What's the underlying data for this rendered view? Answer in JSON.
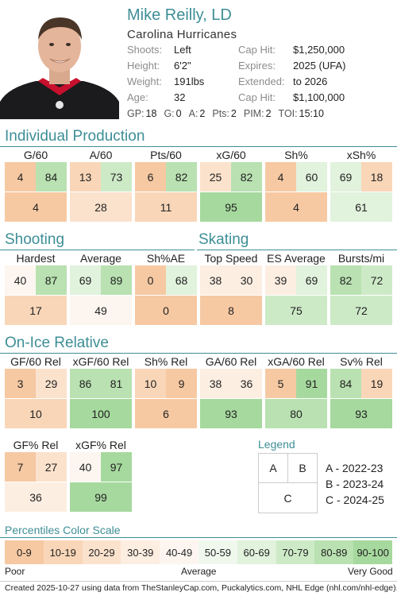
{
  "player": {
    "name": "Mike Reilly, LD",
    "team": "Carolina Hurricanes",
    "details_left": [
      {
        "label": "Shoots:",
        "value": "Left"
      },
      {
        "label": "Height:",
        "value": "6'2\""
      },
      {
        "label": "Weight:",
        "value": "191lbs"
      },
      {
        "label": "Age:",
        "value": "32"
      }
    ],
    "details_right": [
      {
        "label": "Cap Hit:",
        "value": "$1,250,000"
      },
      {
        "label": "Expires:",
        "value": "2025 (UFA)"
      },
      {
        "label": "Extended:",
        "value": "to 2026"
      },
      {
        "label": "Cap Hit:",
        "value": "$1,100,000"
      }
    ],
    "season_stats": [
      {
        "label": "GP:",
        "value": "18"
      },
      {
        "label": "G:",
        "value": "0"
      },
      {
        "label": "A:",
        "value": "2"
      },
      {
        "label": "Pts:",
        "value": "2"
      },
      {
        "label": "PIM:",
        "value": "2"
      },
      {
        "label": "TOI:",
        "value": "15:10"
      }
    ]
  },
  "sections": {
    "individual": "Individual Production",
    "shooting": "Shooting",
    "skating": "Skating",
    "onice": "On-Ice Relative"
  },
  "metrics": {
    "individual": [
      {
        "label": "G/60",
        "a": "4",
        "b": "84",
        "c": "4"
      },
      {
        "label": "A/60",
        "a": "13",
        "b": "73",
        "c": "28"
      },
      {
        "label": "Pts/60",
        "a": "6",
        "b": "82",
        "c": "11"
      },
      {
        "label": "xG/60",
        "a": "25",
        "b": "82",
        "c": "95"
      },
      {
        "label": "Sh%",
        "a": "4",
        "b": "60",
        "c": "4"
      },
      {
        "label": "xSh%",
        "a": "69",
        "b": "18",
        "c": "61"
      }
    ],
    "shooting": [
      {
        "label": "Hardest",
        "a": "40",
        "b": "87",
        "c": "17"
      },
      {
        "label": "Average",
        "a": "69",
        "b": "89",
        "c": "49"
      },
      {
        "label": "Sh%AE",
        "a": "0",
        "b": "68",
        "c": "0"
      }
    ],
    "skating": [
      {
        "label": "Top Speed",
        "a": "38",
        "b": "30",
        "c": "8"
      },
      {
        "label": "ES Average",
        "a": "39",
        "b": "69",
        "c": "75"
      },
      {
        "label": "Bursts/mi",
        "a": "82",
        "b": "72",
        "c": "72"
      }
    ],
    "onice1": [
      {
        "label": "GF/60 Rel",
        "a": "3",
        "b": "29",
        "c": "10"
      },
      {
        "label": "xGF/60 Rel",
        "a": "86",
        "b": "81",
        "c": "100"
      },
      {
        "label": "Sh% Rel",
        "a": "10",
        "b": "9",
        "c": "6"
      },
      {
        "label": "GA/60 Rel",
        "a": "38",
        "b": "36",
        "c": "93"
      },
      {
        "label": "xGA/60 Rel",
        "a": "5",
        "b": "91",
        "c": "80"
      },
      {
        "label": "Sv% Rel",
        "a": "84",
        "b": "19",
        "c": "93"
      }
    ],
    "onice2": [
      {
        "label": "GF% Rel",
        "a": "7",
        "b": "27",
        "c": "36"
      },
      {
        "label": "xGF% Rel",
        "a": "40",
        "b": "97",
        "c": "99"
      }
    ]
  },
  "legend": {
    "title": "Legend",
    "box_a": "A",
    "box_b": "B",
    "box_c": "C",
    "items": [
      "A - 2022-23",
      "B - 2023-24",
      "C - 2024-25"
    ]
  },
  "scale": {
    "title": "Percentiles Color Scale",
    "bins": [
      "0-9",
      "10-19",
      "20-29",
      "30-39",
      "40-49",
      "50-59",
      "60-69",
      "70-79",
      "80-89",
      "90-100"
    ],
    "colors": [
      "#f6c9a3",
      "#f9d6b8",
      "#fbe2cd",
      "#fdeee2",
      "#fdf6f0",
      "#f0f8ee",
      "#e1f2dd",
      "#cdeac7",
      "#b9e1b1",
      "#a6d99e"
    ],
    "low_label": "Poor",
    "mid_label": "Average",
    "high_label": "Very Good"
  },
  "footer": "Created 2025-10-27 using data from TheStanleyCap.com, Puckalytics.com, NHL Edge (nhl.com/nhl-edge)."
}
